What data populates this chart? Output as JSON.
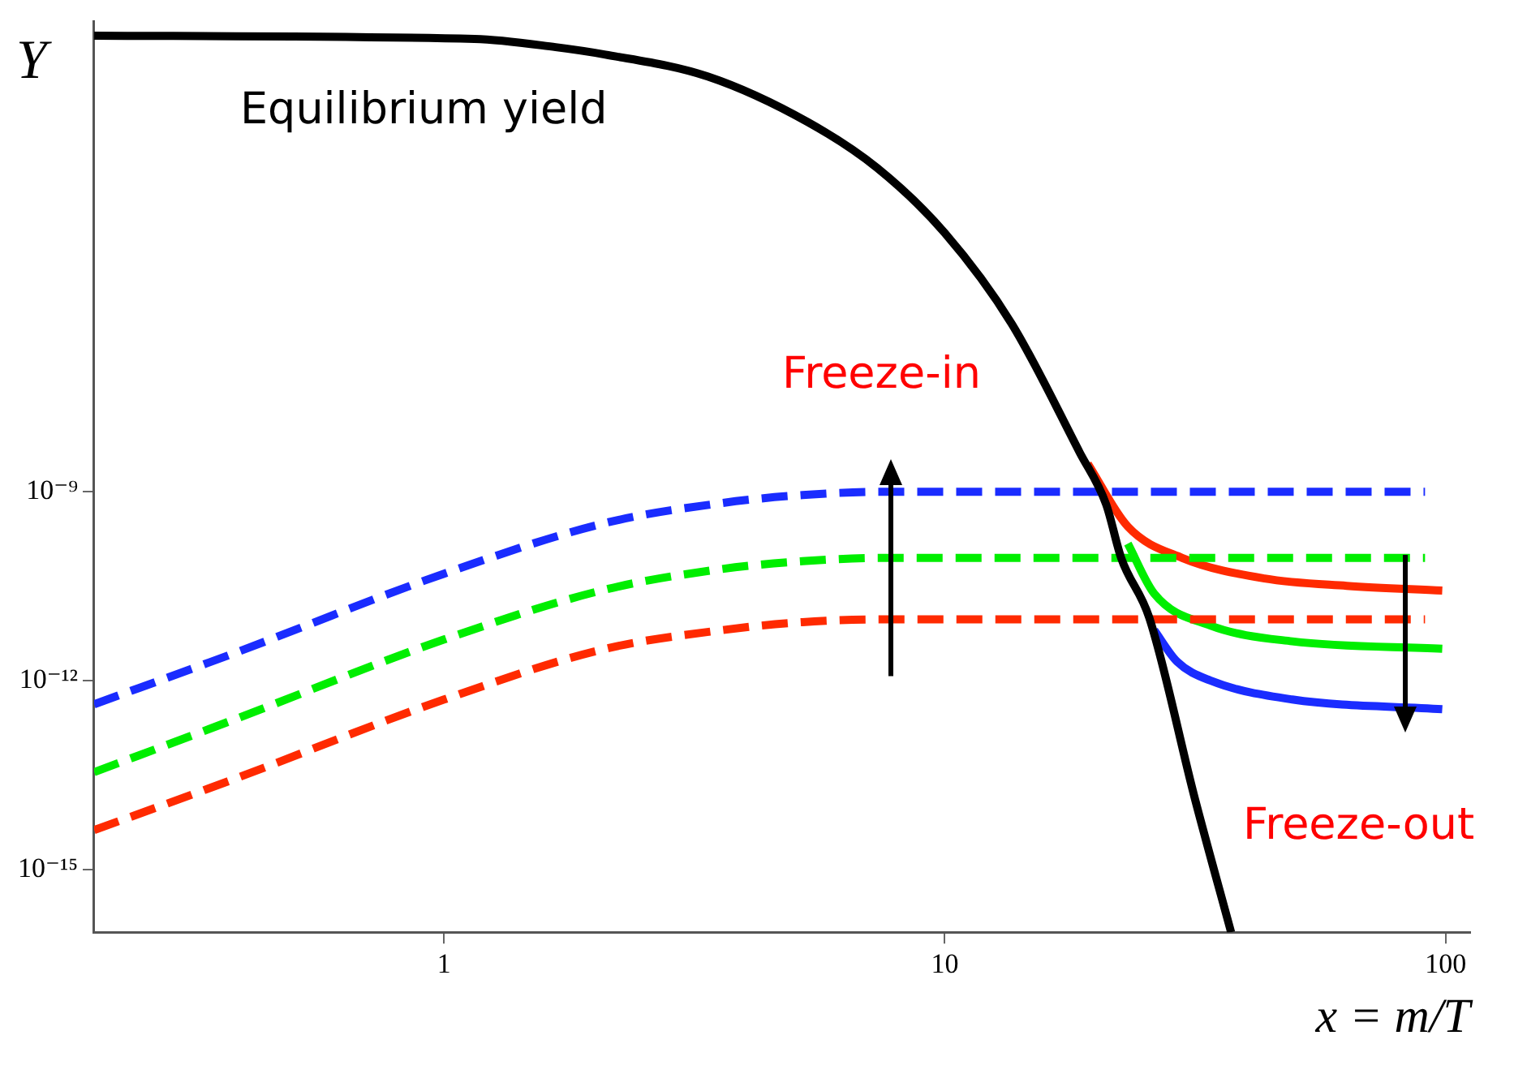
{
  "chart_data": {
    "type": "line",
    "xlabel": "x = m/T",
    "ylabel": "Y",
    "log": "xy",
    "grid": false,
    "legend": false,
    "marker": "none",
    "xlim": [
      0.2,
      112
    ],
    "xticks": [
      1,
      10,
      100
    ],
    "ylim": [
      1e-16,
      0.03
    ],
    "yticks": [
      {
        "value": 1e-09,
        "label": "10⁻⁹"
      },
      {
        "value": 1e-12,
        "label": "10⁻¹²"
      },
      {
        "value": 1e-15,
        "label": "10⁻¹⁵"
      }
    ],
    "annotations": [
      "Equilibrium yield",
      "Freeze-in",
      "Freeze-out"
    ],
    "series": [
      {
        "color": "#000000",
        "line_style": "solid",
        "x": [
          0.2,
          1.15,
          1.67,
          2.1,
          3.36,
          5.33,
          7.33,
          10,
          13.6,
          18.6,
          21,
          22.5,
          25.6,
          31.6,
          37.3
        ],
        "values": [
          0.0178,
          0.0158,
          0.0117,
          0.0089,
          0.004,
          0.00075,
          0.00014,
          1.3e-05,
          4.7e-07,
          4.2e-09,
          6.3e-10,
          8.9e-11,
          1e-11,
          1.3e-14,
          1e-16
        ]
      },
      {
        "color": "#1a2cff",
        "line_style": "dashed",
        "x": [
          0.2,
          0.37,
          1,
          2.1,
          3.57,
          5.2,
          7.6,
          91
        ],
        "values": [
          4.2e-13,
          2.5e-12,
          5e-11,
          3.2e-10,
          6.6e-10,
          8.9e-10,
          1e-09,
          1e-09
        ]
      },
      {
        "color": "#00ee00",
        "line_style": "dashed",
        "x": [
          0.2,
          0.37,
          1,
          2.1,
          3.57,
          5.2,
          7.6,
          91
        ],
        "values": [
          3.5e-14,
          2.2e-13,
          4.5e-12,
          2.8e-11,
          5.9e-11,
          7.9e-11,
          8.9e-11,
          8.9e-11
        ]
      },
      {
        "color": "#ff2a00",
        "line_style": "dashed",
        "x": [
          0.2,
          0.37,
          1,
          2.1,
          3.57,
          5.2,
          7.6,
          91
        ],
        "values": [
          4.2e-15,
          2.5e-14,
          5e-13,
          3.2e-12,
          6.3e-12,
          8.5e-12,
          9.4e-12,
          9.4e-12
        ]
      },
      {
        "color": "#ff2a00",
        "line_style": "solid",
        "x": [
          19.3,
          23.2,
          29.8,
          43.5,
          63.5,
          98.5
        ],
        "values": [
          2.8e-09,
          2.8e-10,
          8.9e-11,
          4.2e-11,
          3.2e-11,
          2.7e-11
        ]
      },
      {
        "color": "#00ee00",
        "line_style": "solid",
        "x": [
          23.2,
          26.2,
          33.9,
          49.4,
          98.5
        ],
        "values": [
          1.5e-10,
          2.4e-11,
          7.5e-12,
          4.2e-12,
          3.2e-12
        ]
      },
      {
        "color": "#1a2cff",
        "line_style": "solid",
        "x": [
          26.2,
          29.1,
          33.9,
          49.4,
          98.5
        ],
        "values": [
          6.3e-12,
          2e-12,
          1e-12,
          5e-13,
          3.5e-13
        ]
      }
    ]
  }
}
